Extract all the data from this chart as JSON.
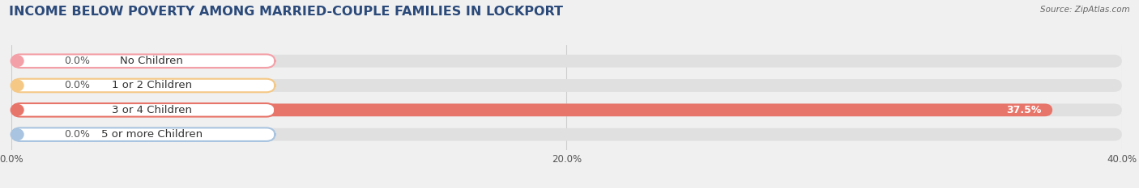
{
  "title": "INCOME BELOW POVERTY AMONG MARRIED-COUPLE FAMILIES IN LOCKPORT",
  "source": "Source: ZipAtlas.com",
  "categories": [
    "No Children",
    "1 or 2 Children",
    "3 or 4 Children",
    "5 or more Children"
  ],
  "values": [
    0.0,
    0.0,
    37.5,
    0.0
  ],
  "bar_colors": [
    "#f4a0a8",
    "#f5c885",
    "#e8756a",
    "#a8c4e0"
  ],
  "xlim": [
    0,
    40
  ],
  "xticks": [
    0.0,
    20.0,
    40.0
  ],
  "xtick_labels": [
    "0.0%",
    "20.0%",
    "40.0%"
  ],
  "bar_height": 0.52,
  "fig_bg_color": "#f0f0f0",
  "bar_bg_color": "#e0e0e0",
  "title_fontsize": 11.5,
  "label_fontsize": 9.5,
  "value_fontsize": 9
}
